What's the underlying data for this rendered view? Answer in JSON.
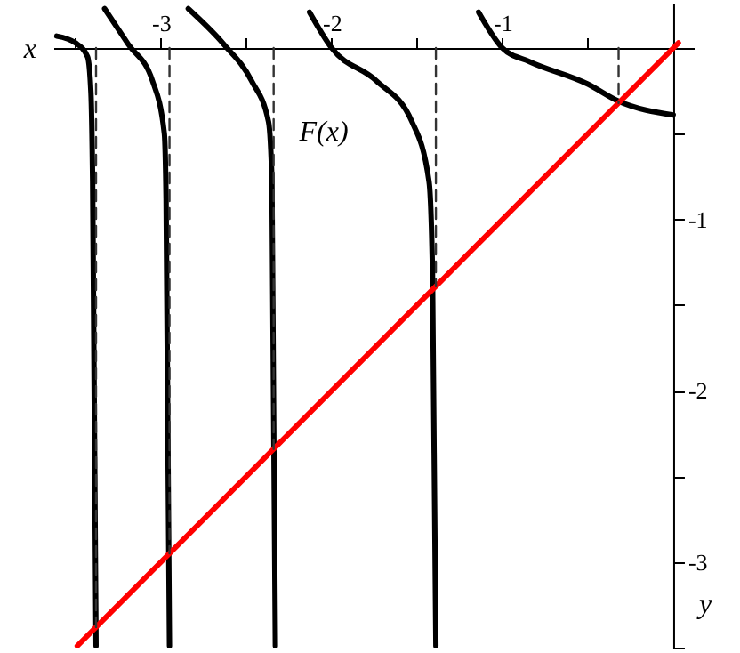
{
  "chart_data": {
    "type": "line",
    "xlabel": "x",
    "ylabel": "y",
    "marker": "none",
    "xlim": [
      -3.63,
      0.12
    ],
    "ylim": [
      -3.5,
      0.26
    ],
    "xticks": [
      {
        "value": -3.5,
        "label": null
      },
      -3,
      {
        "value": -2.5,
        "label": null
      },
      -2,
      {
        "value": -1.5,
        "label": null
      },
      -1,
      {
        "value": -0.5,
        "label": null
      }
    ],
    "yticks": [
      {
        "value": -0.5,
        "label": null
      },
      -1,
      {
        "value": -1.5,
        "label": null
      },
      -2,
      {
        "value": -2.5,
        "label": null
      },
      -3,
      {
        "value": -3.5,
        "label": null
      }
    ],
    "annotations": [
      "F(x)"
    ],
    "series": [
      {
        "color": "#000000",
        "line_style": "solid",
        "x": [
          -3.61,
          -3.5,
          -3.43,
          -3.41,
          -3.4,
          -3.38
        ],
        "values": [
          0.07,
          0.03,
          -0.05,
          -0.26,
          -0.78,
          -3.49
        ]
      },
      {
        "color": "#000000",
        "line_style": "solid",
        "x": [
          -3.33,
          -3.19,
          -3.05,
          -2.98,
          -2.97,
          -2.95
        ],
        "values": [
          0.23,
          0.02,
          -0.19,
          -0.5,
          -0.88,
          -3.49
        ]
      },
      {
        "color": "#000000",
        "line_style": "solid",
        "x": [
          -2.84,
          -2.63,
          -2.47,
          -2.37,
          -2.35,
          -2.33
        ],
        "values": [
          0.23,
          0.02,
          -0.19,
          -0.43,
          -0.78,
          -3.49
        ]
      },
      {
        "color": "#000000",
        "line_style": "solid",
        "x": [
          -2.13,
          -2,
          -1.74,
          -1.53,
          -1.43,
          -1.41,
          -1.39
        ],
        "values": [
          0.21,
          0,
          -0.19,
          -0.43,
          -0.78,
          -1.3,
          -3.49
        ]
      },
      {
        "color": "#000000",
        "line_style": "solid",
        "x": [
          -1.14,
          -1,
          -0.84,
          -0.5,
          -0.32,
          0
        ],
        "values": [
          0.21,
          0,
          -0.08,
          -0.21,
          -0.31,
          -0.39
        ]
      },
      {
        "color": "#ff0000",
        "line_style": "solid",
        "x": [
          -3.49,
          0.03
        ],
        "values": [
          -3.49,
          0.03
        ]
      },
      {
        "color": "#333333",
        "line_style": "dashed",
        "x": [
          -3.38,
          -3.38
        ],
        "values": [
          0,
          -3.38
        ]
      },
      {
        "color": "#333333",
        "line_style": "dashed",
        "x": [
          -2.95,
          -2.95
        ],
        "values": [
          0,
          -2.95
        ]
      },
      {
        "color": "#333333",
        "line_style": "dashed",
        "x": [
          -2.34,
          -2.34
        ],
        "values": [
          0,
          -2.34
        ]
      },
      {
        "color": "#333333",
        "line_style": "dashed",
        "x": [
          -1.39,
          -1.39
        ],
        "values": [
          0,
          -1.39
        ]
      },
      {
        "color": "#333333",
        "line_style": "dashed",
        "x": [
          -0.32,
          -0.32
        ],
        "values": [
          0,
          -0.32
        ]
      }
    ]
  }
}
